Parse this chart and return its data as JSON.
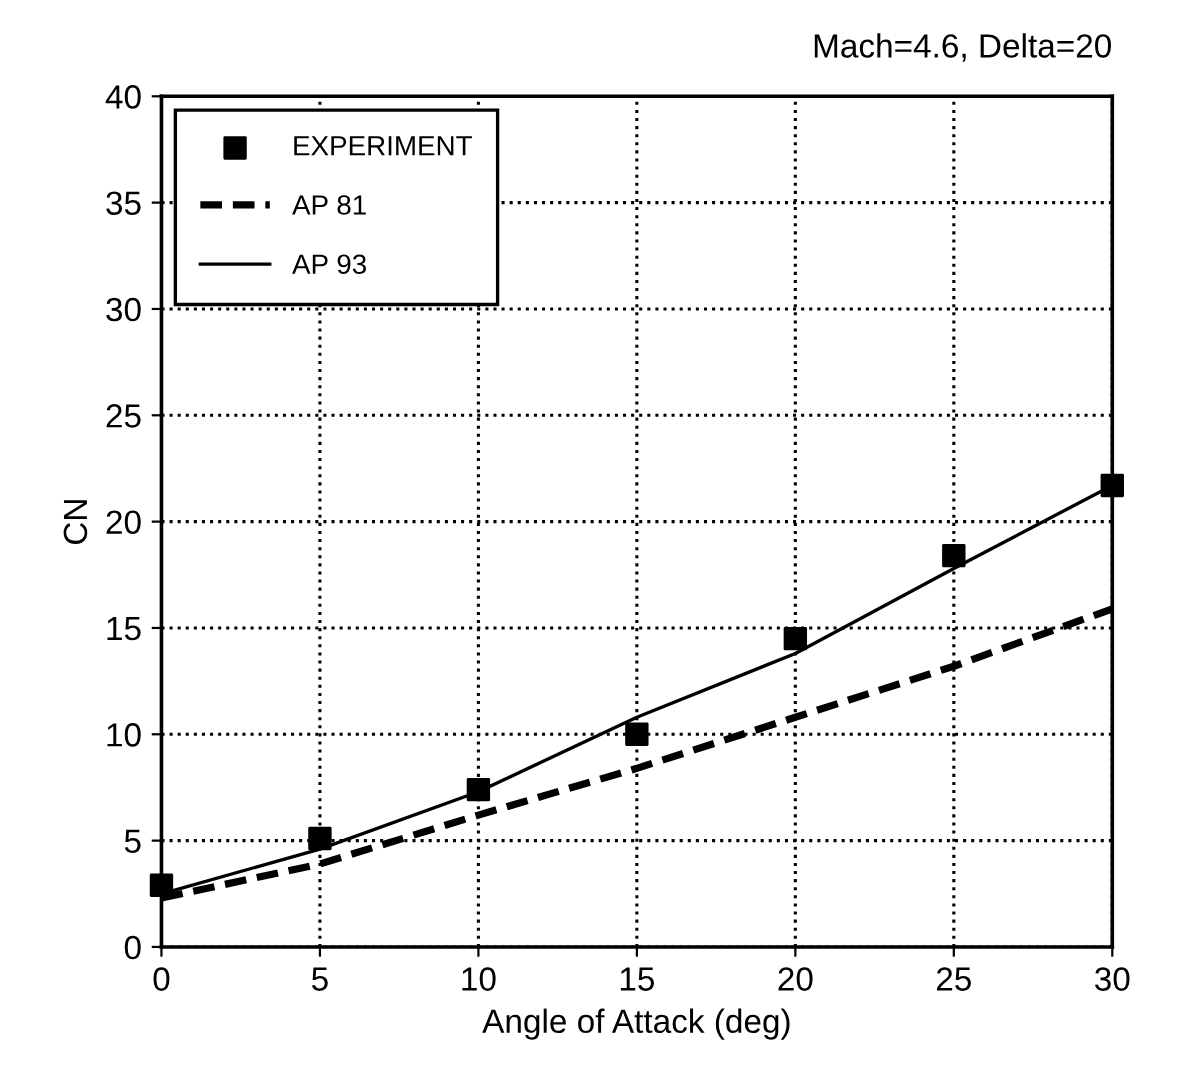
{
  "chart_data": {
    "type": "line",
    "title": "Mach=4.6, Delta=20",
    "xlabel": "Angle of Attack (deg)",
    "ylabel": "CN",
    "x": [
      0,
      5,
      10,
      15,
      20,
      25,
      30
    ],
    "series": [
      {
        "name": "EXPERIMENT",
        "type": "scatter",
        "color": "#000000",
        "marker": "square",
        "values": [
          2.9,
          5.1,
          7.4,
          10.0,
          14.5,
          18.4,
          21.7
        ]
      },
      {
        "name": "AP 81",
        "color": "#000000",
        "line_style": "dashed",
        "values": [
          2.3,
          3.9,
          6.2,
          8.4,
          10.8,
          13.2,
          15.9
        ]
      },
      {
        "name": "AP 93",
        "color": "#000000",
        "line_style": "solid",
        "values": [
          2.5,
          4.6,
          7.3,
          10.8,
          13.8,
          17.8,
          21.7
        ]
      }
    ],
    "xlim": [
      0,
      30
    ],
    "xticks": [
      0,
      5,
      10,
      15,
      20,
      25,
      30
    ],
    "ylim": [
      0,
      40
    ],
    "yticks": [
      0,
      5,
      10,
      15,
      20,
      25,
      30,
      35,
      40
    ],
    "grid": true,
    "legend": "top left"
  }
}
